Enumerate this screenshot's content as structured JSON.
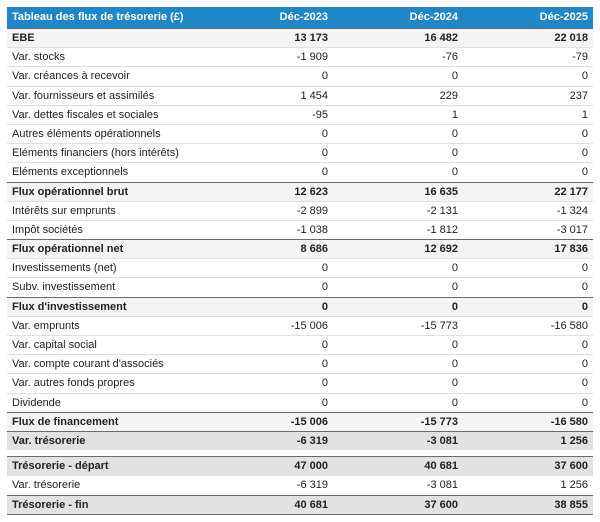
{
  "header": {
    "title": "Tableau des flux de trésorerie (£)",
    "columns": [
      "Déc-2023",
      "Déc-2024",
      "Déc-2025"
    ]
  },
  "colors": {
    "header_bg": "#1e87c9",
    "header_text": "#ffffff",
    "subtotal_bg": "#f4f4f4",
    "total_bg": "#e2e2e2",
    "border_dark": "#6b6b6b",
    "border_light": "#e0e0e0",
    "text": "#222222"
  },
  "chart_data": {
    "type": "table",
    "title": "Tableau des flux de trésorerie (£)",
    "columns": [
      "Déc-2023",
      "Déc-2024",
      "Déc-2025"
    ],
    "rows": [
      {
        "label": "EBE",
        "values": [
          13173,
          16482,
          22018
        ],
        "style": "subtotal"
      },
      {
        "label": "Var. stocks",
        "values": [
          -1909,
          -76,
          -79
        ],
        "style": "normal"
      },
      {
        "label": "Var. créances à recevoir",
        "values": [
          0,
          0,
          0
        ],
        "style": "normal"
      },
      {
        "label": "Var. fournisseurs et assimilés",
        "values": [
          1454,
          229,
          237
        ],
        "style": "normal"
      },
      {
        "label": "Var. dettes fiscales et sociales",
        "values": [
          -95,
          1,
          1
        ],
        "style": "normal"
      },
      {
        "label": "Autres éléments opérationnels",
        "values": [
          0,
          0,
          0
        ],
        "style": "normal"
      },
      {
        "label": "Eléments financiers (hors intérêts)",
        "values": [
          0,
          0,
          0
        ],
        "style": "normal"
      },
      {
        "label": "Eléments exceptionnels",
        "values": [
          0,
          0,
          0
        ],
        "style": "normal"
      },
      {
        "label": "Flux opérationnel brut",
        "values": [
          12623,
          16635,
          22177
        ],
        "style": "subtotal"
      },
      {
        "label": "Intérêts sur emprunts",
        "values": [
          -2899,
          -2131,
          -1324
        ],
        "style": "normal"
      },
      {
        "label": "Impôt sociétés",
        "values": [
          -1038,
          -1812,
          -3017
        ],
        "style": "normal"
      },
      {
        "label": "Flux opérationnel net",
        "values": [
          8686,
          12692,
          17836
        ],
        "style": "subtotal"
      },
      {
        "label": "Investissements (net)",
        "values": [
          0,
          0,
          0
        ],
        "style": "normal"
      },
      {
        "label": "Subv. investissement",
        "values": [
          0,
          0,
          0
        ],
        "style": "normal"
      },
      {
        "label": "Flux d'investissement",
        "values": [
          0,
          0,
          0
        ],
        "style": "subtotal"
      },
      {
        "label": "Var. emprunts",
        "values": [
          -15006,
          -15773,
          -16580
        ],
        "style": "normal"
      },
      {
        "label": "Var. capital social",
        "values": [
          0,
          0,
          0
        ],
        "style": "normal"
      },
      {
        "label": "Var. compte courant d'associés",
        "values": [
          0,
          0,
          0
        ],
        "style": "normal"
      },
      {
        "label": "Var. autres fonds propres",
        "values": [
          0,
          0,
          0
        ],
        "style": "normal"
      },
      {
        "label": "Dividende",
        "values": [
          0,
          0,
          0
        ],
        "style": "normal"
      },
      {
        "label": "Flux de financement",
        "values": [
          -15006,
          -15773,
          -16580
        ],
        "style": "subtotal"
      },
      {
        "label": "Var. trésorerie",
        "values": [
          -6319,
          -3081,
          1256
        ],
        "style": "total"
      },
      {
        "label": "",
        "values": null,
        "style": "spacer"
      },
      {
        "label": "Trésorerie - départ",
        "values": [
          47000,
          40681,
          37600
        ],
        "style": "total"
      },
      {
        "label": "Var. trésorerie",
        "values": [
          -6319,
          -3081,
          1256
        ],
        "style": "normal"
      },
      {
        "label": "Trésorerie - fin",
        "values": [
          40681,
          37600,
          38855
        ],
        "style": "total-end"
      }
    ]
  }
}
